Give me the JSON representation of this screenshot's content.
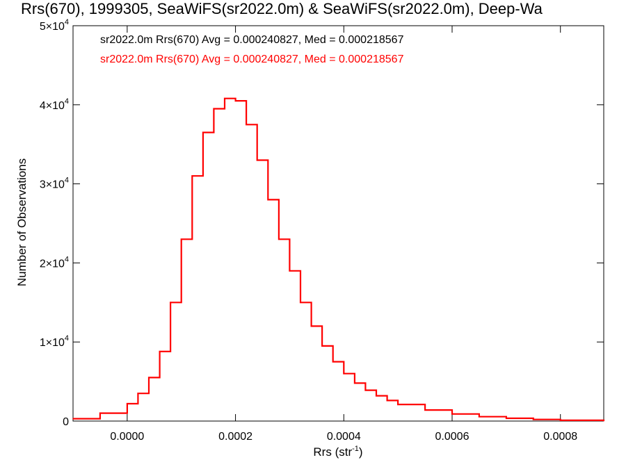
{
  "chart_data": {
    "type": "line",
    "title": "Rrs(670), 1999305, SeaWiFS(sr2022.0m) & SeaWiFS(sr2022.0m), Deep-Wa",
    "xlabel_base": "Rrs (str",
    "xlabel_sup": "-1",
    "xlabel_close": ")",
    "ylabel": "Number of Observations",
    "xlim": [
      -0.0001,
      0.00088
    ],
    "ylim": [
      0,
      50000
    ],
    "grid": false,
    "legend_placement": "top-left",
    "x_ticks": [
      {
        "value": 0.0,
        "label": "0.0000"
      },
      {
        "value": 0.0002,
        "label": "0.0002"
      },
      {
        "value": 0.0004,
        "label": "0.0004"
      },
      {
        "value": 0.0006,
        "label": "0.0006"
      },
      {
        "value": 0.0008,
        "label": "0.0008"
      }
    ],
    "y_ticks": [
      {
        "value": 0,
        "label": "0",
        "exp": ""
      },
      {
        "value": 10000,
        "label": "1×10",
        "exp": "4"
      },
      {
        "value": 20000,
        "label": "2×10",
        "exp": "4"
      },
      {
        "value": 30000,
        "label": "3×10",
        "exp": "4"
      },
      {
        "value": 40000,
        "label": "4×10",
        "exp": "4"
      },
      {
        "value": 50000,
        "label": "5×10",
        "exp": "4"
      }
    ],
    "legend": [
      {
        "text": "sr2022.0m Rrs(670) Avg = 0.000240827, Med = 0.000218567",
        "color": "#000000"
      },
      {
        "text": "sr2022.0m Rrs(670) Avg = 0.000240827, Med = 0.000218567",
        "color": "#ff0000"
      }
    ],
    "series": [
      {
        "color": "#ff0000",
        "x": [
          -0.0001,
          -5e-05,
          0.0,
          2e-05,
          4e-05,
          6e-05,
          8e-05,
          0.0001,
          0.00012,
          0.00014,
          0.00016,
          0.00018,
          0.0002,
          0.00022,
          0.00024,
          0.00026,
          0.00028,
          0.0003,
          0.00032,
          0.00034,
          0.00036,
          0.00038,
          0.0004,
          0.00042,
          0.00044,
          0.00046,
          0.00048,
          0.0005,
          0.00055,
          0.0006,
          0.00065,
          0.0007,
          0.00075,
          0.0008,
          0.00088
        ],
        "y": [
          300,
          1000,
          2200,
          3500,
          5500,
          8800,
          15000,
          23000,
          31000,
          36500,
          39500,
          40800,
          40500,
          37500,
          33000,
          28000,
          23000,
          19000,
          15000,
          12000,
          9500,
          7500,
          6000,
          4800,
          3900,
          3200,
          2600,
          2100,
          1400,
          900,
          550,
          350,
          200,
          100,
          30
        ]
      }
    ]
  }
}
